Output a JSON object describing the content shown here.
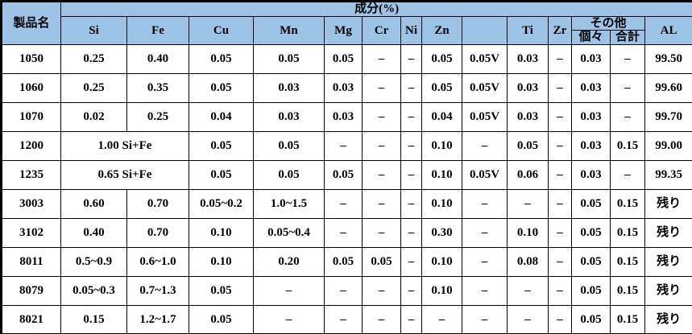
{
  "colors": {
    "header_bg": "#9DC3E6",
    "border": "#000000",
    "body_bg": "#FFFFFF",
    "text": "#000000"
  },
  "header": {
    "product": "製品名",
    "composition": "成分(%)",
    "elements": [
      "Si",
      "Fe",
      "Cu",
      "Mn",
      "Mg",
      "Cr",
      "Ni",
      "Zn",
      "",
      "Ti",
      "Zr"
    ],
    "others": {
      "label": "その他",
      "individual": "個々",
      "total": "合計"
    },
    "al": "AL"
  },
  "table": {
    "rows": [
      {
        "name": "1050",
        "cells": [
          {
            "v": "0.25"
          },
          {
            "v": "0.40"
          },
          {
            "v": "0.05"
          },
          {
            "v": "0.05"
          },
          {
            "v": "0.05"
          },
          {
            "v": "–"
          },
          {
            "v": "–"
          },
          {
            "v": "0.05"
          },
          {
            "v": "0.05V"
          },
          {
            "v": "0.03"
          },
          {
            "v": "–"
          },
          {
            "v": "0.03"
          },
          {
            "v": "–"
          },
          {
            "v": "99.50"
          }
        ]
      },
      {
        "name": "1060",
        "cells": [
          {
            "v": "0.25"
          },
          {
            "v": "0.35"
          },
          {
            "v": "0.05"
          },
          {
            "v": "0.03"
          },
          {
            "v": "0.03"
          },
          {
            "v": "–"
          },
          {
            "v": "–"
          },
          {
            "v": "0.05"
          },
          {
            "v": "0.05V"
          },
          {
            "v": "0.03"
          },
          {
            "v": "–"
          },
          {
            "v": "0.03"
          },
          {
            "v": "–"
          },
          {
            "v": "99.60"
          }
        ]
      },
      {
        "name": "1070",
        "cells": [
          {
            "v": "0.02"
          },
          {
            "v": "0.25"
          },
          {
            "v": "0.04"
          },
          {
            "v": "0.03"
          },
          {
            "v": "0.03"
          },
          {
            "v": "–"
          },
          {
            "v": "–"
          },
          {
            "v": "0.04"
          },
          {
            "v": "0.05V"
          },
          {
            "v": "0.03"
          },
          {
            "v": "–"
          },
          {
            "v": "0.03"
          },
          {
            "v": "–"
          },
          {
            "v": "99.70"
          }
        ]
      },
      {
        "name": "1200",
        "cells": [
          {
            "v": "1.00 Si+Fe",
            "span": 2
          },
          {
            "v": "0.05"
          },
          {
            "v": "0.05"
          },
          {
            "v": "–"
          },
          {
            "v": "–"
          },
          {
            "v": "–"
          },
          {
            "v": "0.10"
          },
          {
            "v": "–"
          },
          {
            "v": "0.05"
          },
          {
            "v": "–"
          },
          {
            "v": "0.03"
          },
          {
            "v": "0.15"
          },
          {
            "v": "99.00"
          }
        ]
      },
      {
        "name": "1235",
        "cells": [
          {
            "v": "0.65 Si+Fe",
            "span": 2
          },
          {
            "v": "0.05"
          },
          {
            "v": "0.05"
          },
          {
            "v": "0.05"
          },
          {
            "v": "–"
          },
          {
            "v": "–"
          },
          {
            "v": "0.10"
          },
          {
            "v": "0.05V"
          },
          {
            "v": "0.06"
          },
          {
            "v": "–"
          },
          {
            "v": "0.03"
          },
          {
            "v": "–"
          },
          {
            "v": "99.35"
          }
        ]
      },
      {
        "name": "3003",
        "cells": [
          {
            "v": "0.60"
          },
          {
            "v": "0.70"
          },
          {
            "v": "0.05~0.2"
          },
          {
            "v": "1.0~1.5"
          },
          {
            "v": "–"
          },
          {
            "v": "–"
          },
          {
            "v": "–"
          },
          {
            "v": "0.10"
          },
          {
            "v": "–"
          },
          {
            "v": "–"
          },
          {
            "v": "–"
          },
          {
            "v": "0.05"
          },
          {
            "v": "0.15"
          },
          {
            "v": "残り"
          }
        ]
      },
      {
        "name": "3102",
        "cells": [
          {
            "v": "0.40"
          },
          {
            "v": "0.70"
          },
          {
            "v": "0.10"
          },
          {
            "v": "0.05~0.4"
          },
          {
            "v": "–"
          },
          {
            "v": "–"
          },
          {
            "v": "–"
          },
          {
            "v": "0.30"
          },
          {
            "v": "–"
          },
          {
            "v": "0.10"
          },
          {
            "v": "–"
          },
          {
            "v": "0.05"
          },
          {
            "v": "0.15"
          },
          {
            "v": "残り"
          }
        ]
      },
      {
        "name": "8011",
        "cells": [
          {
            "v": "0.5~0.9"
          },
          {
            "v": "0.6~1.0"
          },
          {
            "v": "0.10"
          },
          {
            "v": "0.20"
          },
          {
            "v": "0.05"
          },
          {
            "v": "0.05"
          },
          {
            "v": "–"
          },
          {
            "v": "0.10"
          },
          {
            "v": "–"
          },
          {
            "v": "0.08"
          },
          {
            "v": "–"
          },
          {
            "v": "0.05"
          },
          {
            "v": "0.15"
          },
          {
            "v": "残り"
          }
        ]
      },
      {
        "name": "8079",
        "cells": [
          {
            "v": "0.05~0.3"
          },
          {
            "v": "0.7~1.3"
          },
          {
            "v": "0.05"
          },
          {
            "v": "–"
          },
          {
            "v": "–"
          },
          {
            "v": "–"
          },
          {
            "v": "–"
          },
          {
            "v": "0.10"
          },
          {
            "v": "–"
          },
          {
            "v": "–"
          },
          {
            "v": "–"
          },
          {
            "v": "0.05"
          },
          {
            "v": "0.15"
          },
          {
            "v": "残り"
          }
        ]
      },
      {
        "name": "8021",
        "cells": [
          {
            "v": "0.15"
          },
          {
            "v": "1.2~1.7"
          },
          {
            "v": "0.05"
          },
          {
            "v": "–"
          },
          {
            "v": "–"
          },
          {
            "v": "–"
          },
          {
            "v": "–"
          },
          {
            "v": "–"
          },
          {
            "v": "–"
          },
          {
            "v": "–"
          },
          {
            "v": "–"
          },
          {
            "v": "0.05"
          },
          {
            "v": "0.15"
          },
          {
            "v": "残り"
          }
        ]
      }
    ]
  }
}
